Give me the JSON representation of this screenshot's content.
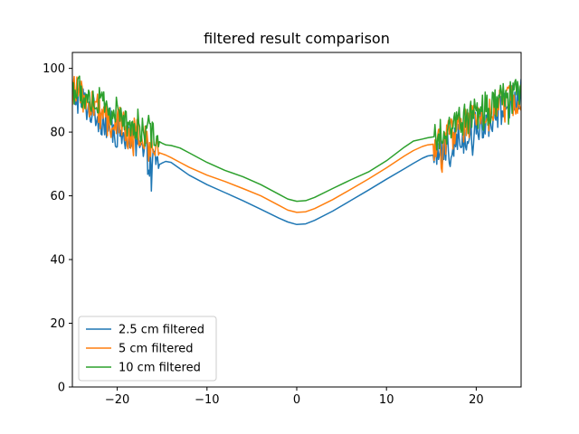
{
  "chart_data": {
    "type": "line",
    "title": "filtered result comparison",
    "xlabel": "",
    "ylabel": "",
    "xlim": [
      -25,
      25
    ],
    "ylim": [
      0,
      105
    ],
    "xticks": [
      -20,
      -10,
      0,
      10,
      20
    ],
    "xtick_labels": [
      "−20",
      "−10",
      "0",
      "10",
      "20"
    ],
    "yticks": [
      0,
      20,
      40,
      60,
      80,
      100
    ],
    "ytick_labels": [
      "0",
      "20",
      "40",
      "60",
      "80",
      "100"
    ],
    "grid": false,
    "legend_position": "lower-left",
    "noise_region": {
      "left_end": -15.3,
      "right_start": 15.2
    },
    "series": [
      {
        "name": "2.5 cm filtered",
        "color": "#1f77b4",
        "x": [
          -15.3,
          -15,
          -14.6,
          -14,
          -13,
          -12,
          -10,
          -8,
          -6,
          -4,
          -2,
          -1,
          0,
          1,
          2,
          4,
          6,
          8,
          10,
          12,
          13,
          14,
          14.6,
          15.2
        ],
        "y": [
          69.8,
          70.3,
          70.8,
          70.5,
          68.5,
          66.5,
          63.5,
          61.0,
          58.5,
          55.8,
          53.0,
          51.8,
          51.0,
          51.2,
          52.3,
          55.2,
          58.5,
          61.8,
          65.2,
          68.5,
          70.2,
          71.8,
          72.5,
          72.8
        ]
      },
      {
        "name": "5 cm filtered",
        "color": "#ff7f0e",
        "x": [
          -15.3,
          -15,
          -14.6,
          -14,
          -13,
          -12,
          -10,
          -8,
          -6,
          -4,
          -2,
          -1,
          0,
          1,
          2,
          4,
          6,
          8,
          10,
          12,
          13,
          14,
          14.6,
          15.2
        ],
        "y": [
          73.5,
          73.2,
          72.8,
          72.0,
          70.5,
          69.0,
          66.5,
          64.5,
          62.3,
          60.0,
          57.0,
          55.5,
          54.8,
          55.0,
          56.0,
          58.8,
          62.0,
          65.3,
          68.8,
          72.5,
          74.2,
          75.5,
          76.0,
          76.2
        ]
      },
      {
        "name": "10 cm filtered",
        "color": "#2ca02c",
        "x": [
          -15.3,
          -15,
          -14.6,
          -14,
          -13,
          -12,
          -10,
          -8,
          -6,
          -4,
          -2,
          -1,
          0,
          1,
          2,
          4,
          6,
          8,
          10,
          12,
          13,
          14,
          14.6,
          15.2
        ],
        "y": [
          77.0,
          76.5,
          76.0,
          75.8,
          75.0,
          73.5,
          70.5,
          68.0,
          66.0,
          63.5,
          60.5,
          59.0,
          58.3,
          58.5,
          59.5,
          62.3,
          65.0,
          67.5,
          71.0,
          75.3,
          77.2,
          77.8,
          78.2,
          78.5
        ]
      }
    ]
  }
}
